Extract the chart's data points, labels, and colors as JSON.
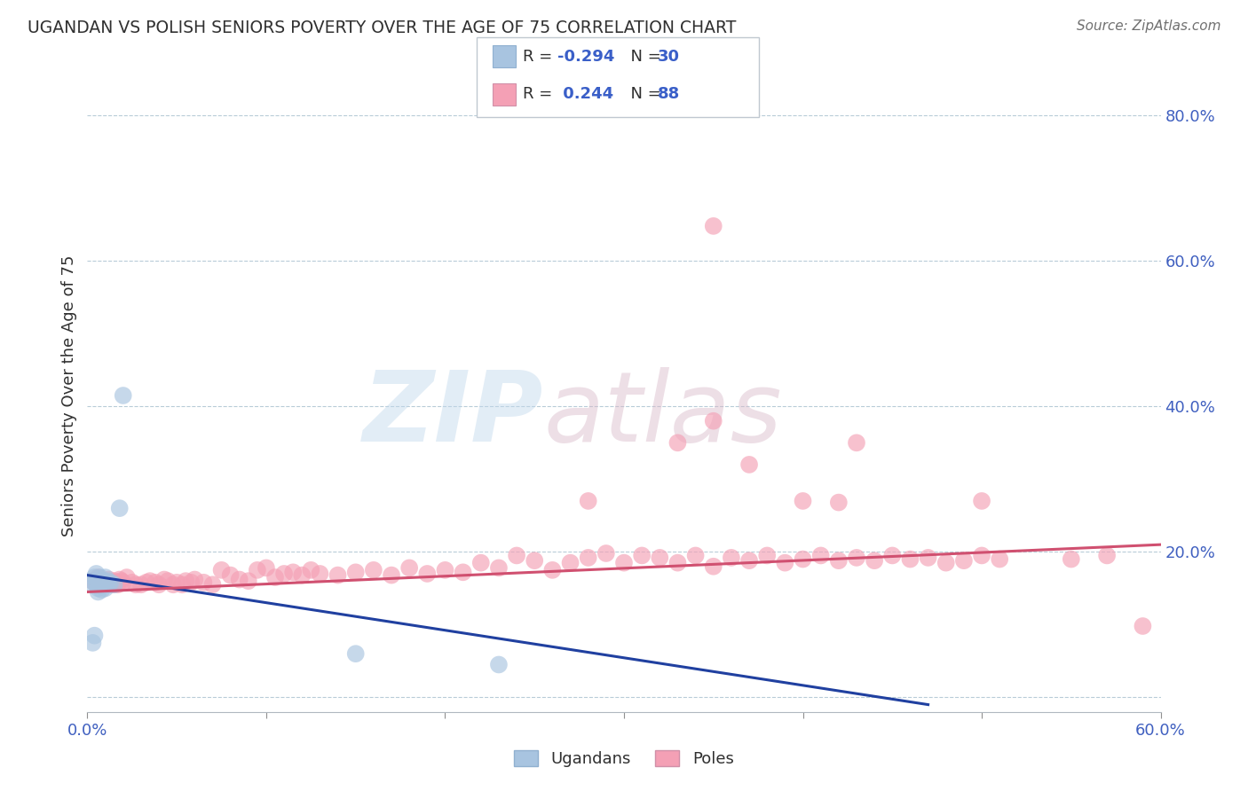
{
  "title": "UGANDAN VS POLISH SENIORS POVERTY OVER THE AGE OF 75 CORRELATION CHART",
  "source": "Source: ZipAtlas.com",
  "ylabel": "Seniors Poverty Over the Age of 75",
  "xlim": [
    0.0,
    0.6
  ],
  "ylim": [
    -0.02,
    0.85
  ],
  "yticks_right": [
    0.0,
    0.2,
    0.4,
    0.6,
    0.8
  ],
  "ytick_labels_right": [
    "",
    "20.0%",
    "40.0%",
    "60.0%",
    "80.0%"
  ],
  "xticks": [
    0.0,
    0.1,
    0.2,
    0.3,
    0.4,
    0.5,
    0.6
  ],
  "xtick_labels": [
    "0.0%",
    "",
    "",
    "",
    "",
    "",
    "60.0%"
  ],
  "ugandan_color": "#a8c4e0",
  "polish_color": "#f4a0b5",
  "ugandan_line_color": "#2040a0",
  "polish_line_color": "#d05070",
  "grid_color": "#b8ccd8",
  "title_color": "#303030",
  "ugandan_x": [
    0.002,
    0.003,
    0.004,
    0.005,
    0.005,
    0.006,
    0.006,
    0.006,
    0.007,
    0.007,
    0.007,
    0.008,
    0.008,
    0.008,
    0.009,
    0.009,
    0.01,
    0.01,
    0.01,
    0.01,
    0.011,
    0.012,
    0.013,
    0.015,
    0.018,
    0.02,
    0.003,
    0.004,
    0.15,
    0.23
  ],
  "ugandan_y": [
    0.155,
    0.16,
    0.165,
    0.17,
    0.155,
    0.16,
    0.15,
    0.145,
    0.155,
    0.16,
    0.165,
    0.155,
    0.148,
    0.158,
    0.155,
    0.16,
    0.155,
    0.158,
    0.15,
    0.165,
    0.16,
    0.155,
    0.158,
    0.155,
    0.26,
    0.415,
    0.075,
    0.085,
    0.06,
    0.045
  ],
  "polish_x": [
    0.003,
    0.005,
    0.006,
    0.007,
    0.008,
    0.009,
    0.01,
    0.011,
    0.012,
    0.013,
    0.014,
    0.015,
    0.016,
    0.017,
    0.018,
    0.019,
    0.02,
    0.022,
    0.025,
    0.027,
    0.03,
    0.033,
    0.035,
    0.038,
    0.04,
    0.043,
    0.045,
    0.048,
    0.05,
    0.053,
    0.055,
    0.058,
    0.06,
    0.065,
    0.07,
    0.075,
    0.08,
    0.085,
    0.09,
    0.095,
    0.1,
    0.105,
    0.11,
    0.115,
    0.12,
    0.125,
    0.13,
    0.14,
    0.15,
    0.16,
    0.17,
    0.18,
    0.19,
    0.2,
    0.21,
    0.22,
    0.23,
    0.24,
    0.25,
    0.26,
    0.27,
    0.28,
    0.29,
    0.3,
    0.31,
    0.32,
    0.33,
    0.34,
    0.35,
    0.36,
    0.37,
    0.38,
    0.39,
    0.4,
    0.41,
    0.42,
    0.43,
    0.44,
    0.45,
    0.46,
    0.47,
    0.48,
    0.49,
    0.5,
    0.51,
    0.55,
    0.57,
    0.59
  ],
  "polish_y": [
    0.16,
    0.155,
    0.165,
    0.16,
    0.155,
    0.16,
    0.158,
    0.155,
    0.162,
    0.158,
    0.155,
    0.16,
    0.158,
    0.155,
    0.162,
    0.16,
    0.158,
    0.165,
    0.158,
    0.155,
    0.155,
    0.158,
    0.16,
    0.158,
    0.155,
    0.162,
    0.16,
    0.155,
    0.158,
    0.155,
    0.16,
    0.158,
    0.162,
    0.158,
    0.155,
    0.175,
    0.168,
    0.162,
    0.16,
    0.175,
    0.178,
    0.165,
    0.17,
    0.172,
    0.168,
    0.175,
    0.17,
    0.168,
    0.172,
    0.175,
    0.168,
    0.178,
    0.17,
    0.175,
    0.172,
    0.185,
    0.178,
    0.195,
    0.188,
    0.175,
    0.185,
    0.192,
    0.198,
    0.185,
    0.195,
    0.192,
    0.185,
    0.195,
    0.18,
    0.192,
    0.188,
    0.195,
    0.185,
    0.19,
    0.195,
    0.188,
    0.192,
    0.188,
    0.195,
    0.19,
    0.192,
    0.185,
    0.188,
    0.195,
    0.19,
    0.19,
    0.195,
    0.098
  ],
  "polish_outliers_x": [
    0.28,
    0.33,
    0.35,
    0.37,
    0.4,
    0.42,
    0.43,
    0.5,
    0.35
  ],
  "polish_outliers_y": [
    0.27,
    0.35,
    0.38,
    0.32,
    0.27,
    0.268,
    0.35,
    0.27,
    0.648
  ],
  "ugandan_outlier_x": [
    0.002
  ],
  "ugandan_outlier_y": [
    0.415
  ]
}
